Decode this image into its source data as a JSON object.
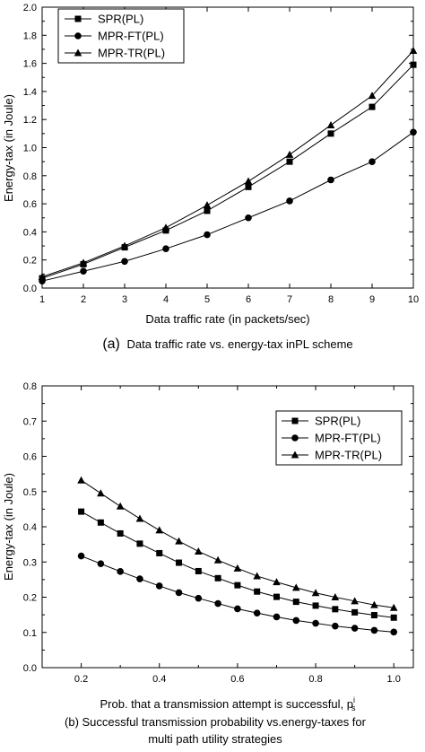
{
  "chart_data": [
    {
      "type": "line",
      "xlabel": "Data traffic rate (in packets/sec)",
      "ylabel": "Energy-tax (in Joule)",
      "caption_marker": "(a)",
      "caption_text": "Data traffic rate vs. energy-tax inPL scheme",
      "x": [
        1,
        2,
        3,
        4,
        5,
        6,
        7,
        8,
        9,
        10
      ],
      "xlim": [
        1,
        10
      ],
      "ylim": [
        0,
        2.0
      ],
      "xticks": [
        1,
        2,
        3,
        4,
        5,
        6,
        7,
        8,
        9,
        10
      ],
      "yticks": [
        0.0,
        0.2,
        0.4,
        0.6,
        0.8,
        1.0,
        1.2,
        1.4,
        1.6,
        1.8,
        2.0
      ],
      "legend_position": "top-left",
      "grid": false,
      "series": [
        {
          "name": "SPR(PL)",
          "marker": "square",
          "values": [
            0.07,
            0.17,
            0.29,
            0.41,
            0.55,
            0.72,
            0.9,
            1.1,
            1.29,
            1.59
          ]
        },
        {
          "name": "MPR-FT(PL)",
          "marker": "circle",
          "values": [
            0.05,
            0.12,
            0.19,
            0.28,
            0.38,
            0.5,
            0.62,
            0.77,
            0.9,
            1.11
          ]
        },
        {
          "name": "MPR-TR(PL)",
          "marker": "triangle",
          "values": [
            0.08,
            0.18,
            0.3,
            0.43,
            0.59,
            0.76,
            0.95,
            1.16,
            1.37,
            1.69
          ]
        }
      ]
    },
    {
      "type": "line",
      "xlabel": "Prob. that a transmission attempt is successful, p",
      "xlabel_sup": "i",
      "xlabel_sub": "s",
      "ylabel": "Energy-tax (in Joule)",
      "caption_line1": "(b) Successful transmission probability vs.energy-taxes for",
      "caption_line2": "multi path utility strategies",
      "x": [
        0.2,
        0.25,
        0.3,
        0.35,
        0.4,
        0.45,
        0.5,
        0.55,
        0.6,
        0.65,
        0.7,
        0.75,
        0.8,
        0.85,
        0.9,
        0.95,
        1.0
      ],
      "xlim": [
        0.1,
        1.05
      ],
      "ylim": [
        0,
        0.8
      ],
      "xticks": [
        0.2,
        0.4,
        0.6,
        0.8,
        1.0
      ],
      "yticks": [
        0.0,
        0.1,
        0.2,
        0.3,
        0.4,
        0.5,
        0.6,
        0.7,
        0.8
      ],
      "legend_position": "top-right",
      "grid": false,
      "series": [
        {
          "name": "SPR(PL)",
          "marker": "square",
          "values": [
            0.443,
            0.412,
            0.381,
            0.352,
            0.325,
            0.298,
            0.274,
            0.254,
            0.234,
            0.216,
            0.201,
            0.187,
            0.176,
            0.166,
            0.157,
            0.149,
            0.142
          ]
        },
        {
          "name": "MPR-FT(PL)",
          "marker": "circle",
          "values": [
            0.317,
            0.295,
            0.273,
            0.252,
            0.232,
            0.213,
            0.197,
            0.182,
            0.167,
            0.155,
            0.144,
            0.134,
            0.126,
            0.118,
            0.112,
            0.106,
            0.101
          ]
        },
        {
          "name": "MPR-TR(PL)",
          "marker": "triangle",
          "values": [
            0.532,
            0.495,
            0.458,
            0.423,
            0.39,
            0.359,
            0.33,
            0.305,
            0.282,
            0.26,
            0.243,
            0.227,
            0.212,
            0.2,
            0.189,
            0.178,
            0.17
          ]
        }
      ]
    }
  ]
}
